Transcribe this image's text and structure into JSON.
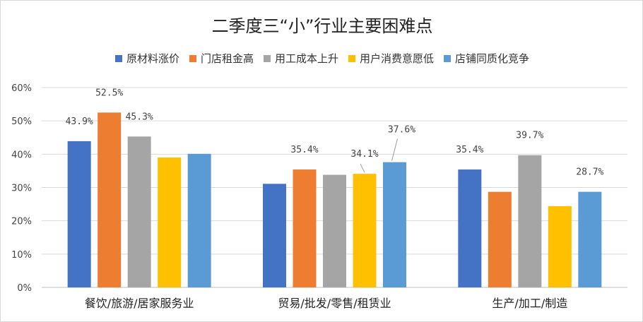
{
  "chart_data": {
    "type": "bar",
    "title": "二季度三“小”行业主要困难点",
    "xlabel": "",
    "ylabel": "",
    "ylim": [
      0,
      0.6
    ],
    "yticks": [
      0,
      0.1,
      0.2,
      0.3,
      0.4,
      0.5,
      0.6
    ],
    "ytick_labels": [
      "0%",
      "10%",
      "20%",
      "30%",
      "40%",
      "50%",
      "60%"
    ],
    "grid": true,
    "legend_position": "top",
    "categories": [
      "餐饮/旅游/居家服务业",
      "贸易/批发/零售/租赁业",
      "生产/加工/制造"
    ],
    "series": [
      {
        "name": "原材料涨价",
        "color": "#4472C4",
        "values": [
          0.439,
          0.311,
          0.354
        ],
        "labels": [
          "43.9%",
          "",
          "35.4%"
        ]
      },
      {
        "name": "门店租金高",
        "color": "#ED7D31",
        "values": [
          0.525,
          0.354,
          0.287
        ],
        "labels": [
          "52.5%",
          "35.4%",
          ""
        ]
      },
      {
        "name": "用工成本上升",
        "color": "#A5A5A5",
        "values": [
          0.453,
          0.338,
          0.397
        ],
        "labels": [
          "45.3%",
          "",
          "39.7%"
        ]
      },
      {
        "name": "用户消费意愿低",
        "color": "#FFC000",
        "values": [
          0.39,
          0.341,
          0.244
        ],
        "labels": [
          "",
          "34.1%",
          ""
        ]
      },
      {
        "name": "店铺同质化竞争",
        "color": "#5B9BD5",
        "values": [
          0.401,
          0.376,
          0.287
        ],
        "labels": [
          "",
          "37.6%",
          "28.7%"
        ]
      }
    ]
  }
}
